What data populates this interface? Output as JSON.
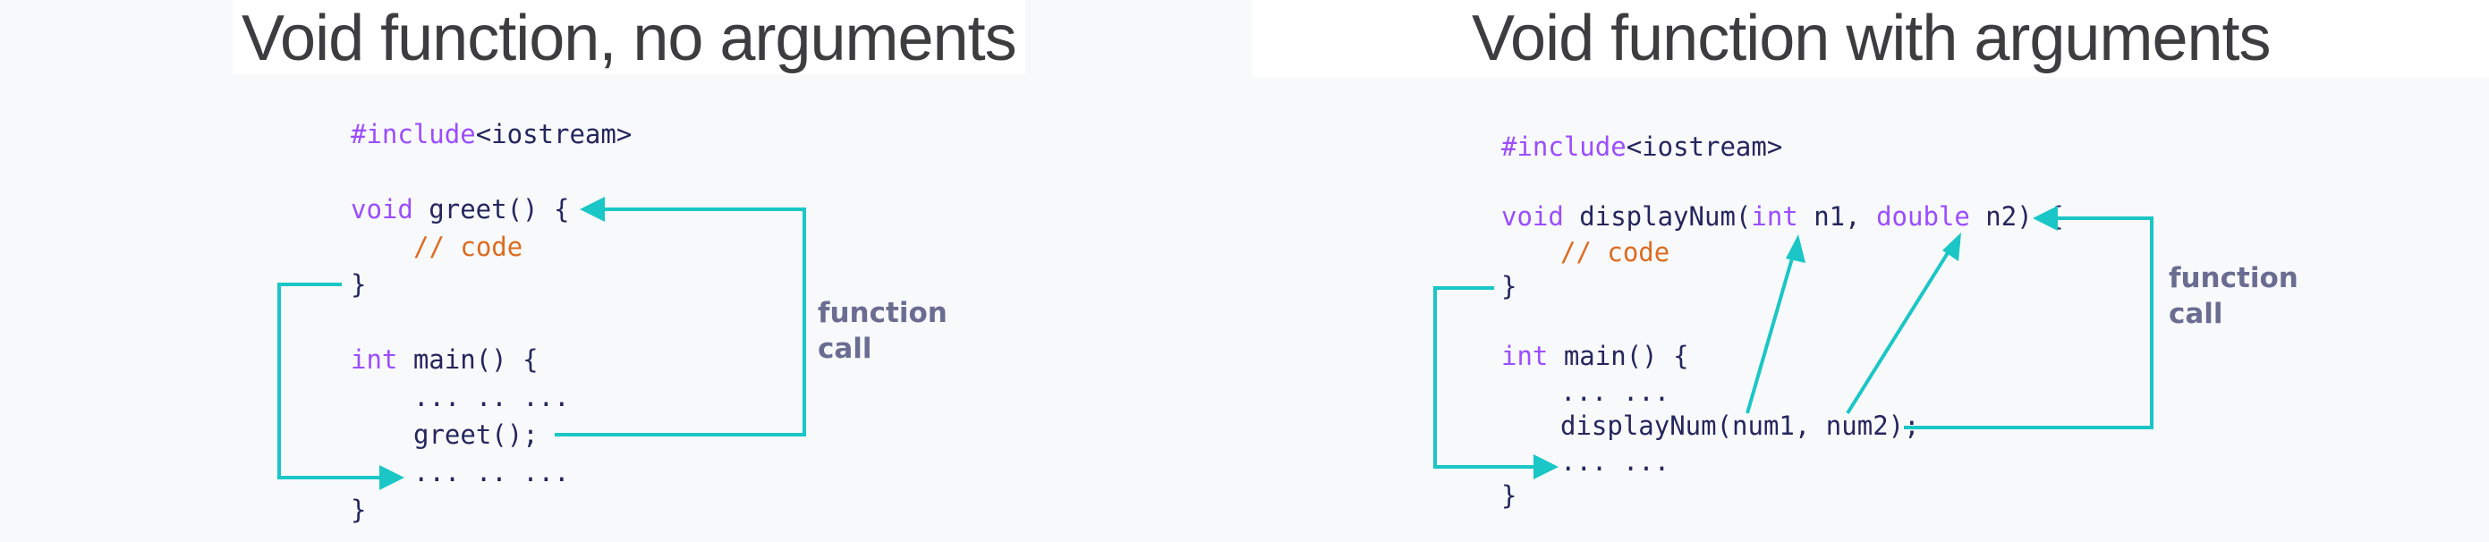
{
  "colors": {
    "arrow": "#1ac6c6",
    "keyword": "#9b4dff",
    "comment": "#dd6b20",
    "code": "#25265e",
    "label": "#6a6d91",
    "title": "#3d3d3f"
  },
  "left": {
    "title": "Void function, no arguments",
    "code": {
      "include_directive": "#include",
      "include_header": "<iostream>",
      "greet_kw": "void",
      "greet_rest": " greet() {",
      "greet_comment": "// code",
      "greet_close": "}",
      "main_kw": "int",
      "main_rest": " main() {",
      "dots_1": "... .. ...",
      "call": "greet();",
      "dots_2": "... .. ...",
      "main_close": "}"
    },
    "label_line1": "function",
    "label_line2": "call"
  },
  "right": {
    "title": "Void function with arguments",
    "code": {
      "include_directive": "#include",
      "include_header": "<iostream>",
      "fn_kw": "void",
      "fn_name": " displayNum(",
      "param1_type": "int",
      "param1_name": " n1, ",
      "param2_type": "double",
      "param2_rest": " n2) {",
      "fn_comment": "// code",
      "fn_close": "}",
      "main_kw": "int",
      "main_rest": " main() {",
      "dots_1": "... ...",
      "call": "displayNum(num1, num2);",
      "dots_2": "... ...",
      "main_close": "}"
    },
    "label_line1": "function",
    "label_line2": "call"
  }
}
